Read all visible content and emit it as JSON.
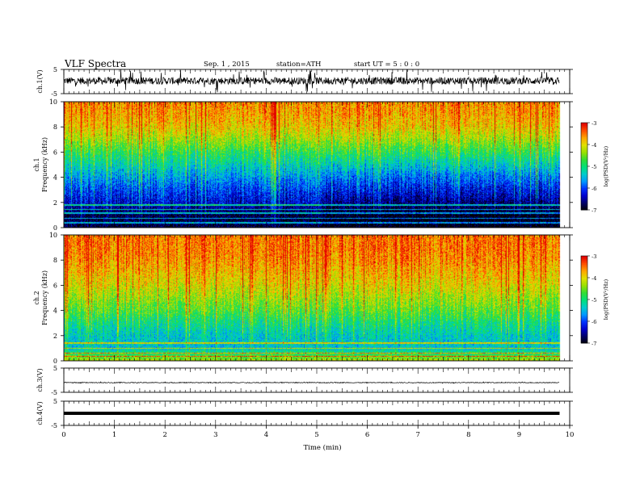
{
  "header": {
    "title": "VLF  Spectra",
    "date": "Sep. 1  , 2015",
    "station": "station=ATH",
    "start": "start  UT  =    5  : 0  : 0"
  },
  "colors": {
    "background": "#ffffff",
    "axes": "#000000",
    "colormap": [
      "#000000",
      "#000066",
      "#0000cc",
      "#0033ff",
      "#0099ff",
      "#00cccc",
      "#00e07a",
      "#33dd33",
      "#99e000",
      "#e0e000",
      "#ffa500",
      "#ff4d00",
      "#e00000"
    ]
  },
  "chart_data": [
    {
      "type": "line",
      "panel": "ch1-waveform",
      "ylabel": "ch.1(V)",
      "ylim": [
        -5,
        5
      ],
      "yticks": [
        -5,
        5
      ],
      "xlim": [
        0,
        10
      ],
      "data_end_min": 9.8,
      "trace": {
        "baseline_v": 0.3,
        "envelope_v": 1.5,
        "spike_v": 4.8
      },
      "stroke": "#000000"
    },
    {
      "type": "heatmap",
      "panel": "ch1-spectrogram",
      "ylabel_top": "ch.1",
      "ylabel": "Frequency  (kHz)",
      "ylim": [
        0,
        10
      ],
      "yticks": [
        0,
        2,
        4,
        6,
        8,
        10
      ],
      "xlim": [
        0,
        10
      ],
      "data_end_min": 9.8,
      "colorbar": {
        "label": "log(PSD(V²/Hz)",
        "range": [
          -7,
          -3
        ],
        "ticks": [
          "-3",
          "-4",
          "-5",
          "-6",
          "-7"
        ]
      },
      "profile_freq_khz": [
        0,
        1,
        2,
        3,
        4,
        5,
        6,
        7,
        8,
        9,
        10
      ],
      "profile_log_psd": [
        -6.8,
        -6.8,
        -6.3,
        -6.0,
        -5.6,
        -5.2,
        -4.8,
        -4.3,
        -3.9,
        -3.7,
        -3.6
      ],
      "profile_log_psd_after_5_1min": [
        -7.0,
        -7.0,
        -6.6,
        -6.2,
        -5.8,
        -5.3,
        -4.8,
        -4.3,
        -3.9,
        -3.7,
        -3.6
      ],
      "lines_khz": [
        0.4,
        0.75,
        1.15,
        1.45,
        1.8
      ]
    },
    {
      "type": "heatmap",
      "panel": "ch2-spectrogram",
      "ylabel_top": "ch.2",
      "ylabel": "Frequency  (kHz)",
      "ylim": [
        0,
        10
      ],
      "yticks": [
        0,
        2,
        4,
        6,
        8,
        10
      ],
      "xlim": [
        0,
        10
      ],
      "data_end_min": 9.8,
      "colorbar": {
        "label": "log(PSD(V²/Hz)",
        "range": [
          -7,
          -3
        ],
        "ticks": [
          "-3",
          "-4",
          "-5",
          "-6",
          "-7"
        ]
      },
      "profile_freq_khz": [
        0,
        1,
        2,
        3,
        4,
        5,
        6,
        7,
        8,
        9,
        10
      ],
      "profile_log_psd": [
        -4.2,
        -5.4,
        -5.3,
        -5.0,
        -4.6,
        -4.3,
        -4.0,
        -3.8,
        -3.6,
        -3.5,
        -3.5
      ],
      "lines_khz": [
        0.35,
        0.6,
        1.0,
        1.4
      ]
    },
    {
      "type": "line",
      "panel": "ch3-waveform",
      "ylabel": "ch.3(V)",
      "ylim": [
        -5,
        5
      ],
      "yticks": [
        -5,
        5
      ],
      "xlim": [
        0,
        10
      ],
      "data_end_min": 9.8,
      "trace": {
        "baseline_v": -1.0,
        "envelope_v": 0.15,
        "spike_v": 0.3
      },
      "stroke": "#000000"
    },
    {
      "type": "line",
      "panel": "ch4-waveform",
      "ylabel": "ch.4(V)",
      "ylim": [
        -5,
        5
      ],
      "yticks": [
        -5,
        5
      ],
      "xlim": [
        0,
        10
      ],
      "data_end_min": 9.8,
      "trace": {
        "baseline_v": 0.0,
        "envelope_v": 0.0,
        "spike_v": 0.0
      },
      "stroke": "#000000"
    }
  ],
  "xaxis": {
    "label": "Time  (min)",
    "ticks": [
      0,
      1,
      2,
      3,
      4,
      5,
      6,
      7,
      8,
      9,
      10
    ],
    "tick_labels": [
      "0",
      "1",
      "2",
      "3",
      "4",
      "5",
      "6",
      "7",
      "8",
      "9",
      "10"
    ]
  }
}
